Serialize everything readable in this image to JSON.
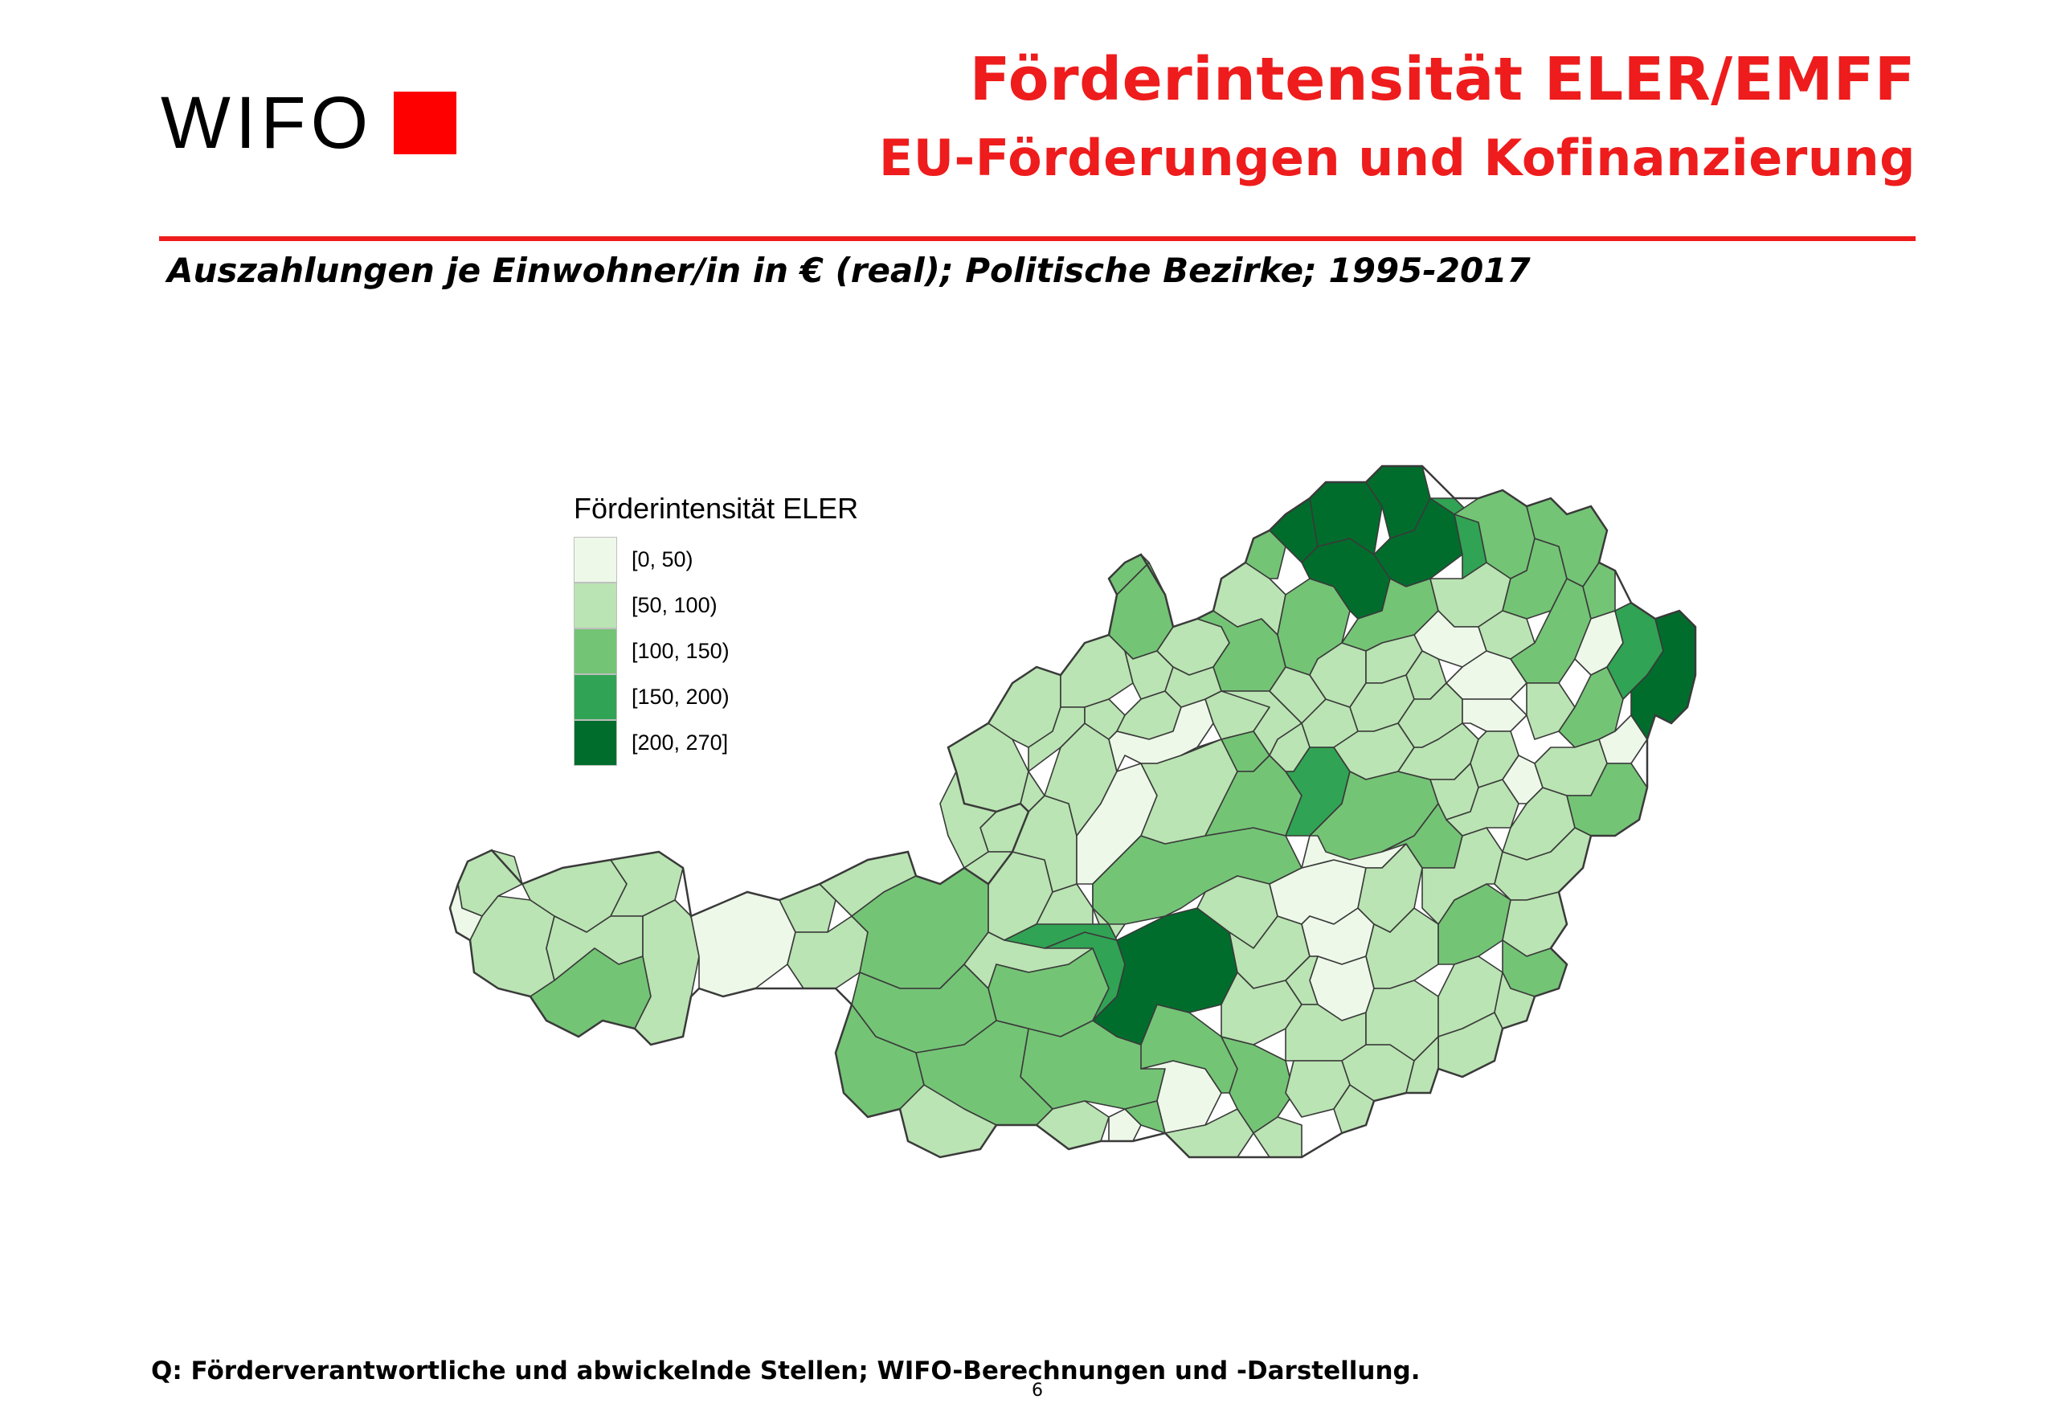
{
  "header": {
    "logo_text": "WIFO",
    "title": "Förderintensität ELER/EMFF",
    "subtitle": "EU-Förderungen und Kofinanzierung"
  },
  "map_subtitle": "Auszahlungen je Einwohner/in in € (real); Politische Bezirke; 1995-2017",
  "legend": {
    "title": "Förderintensität ELER",
    "classes": [
      {
        "label": "[0, 50)",
        "color": "#edf8e9"
      },
      {
        "label": "[50, 100)",
        "color": "#bae4b3"
      },
      {
        "label": "[100, 150)",
        "color": "#74c476"
      },
      {
        "label": "[150, 200)",
        "color": "#31a354"
      },
      {
        "label": "[200, 270]",
        "color": "#006d2c"
      }
    ]
  },
  "colors": {
    "accent": "#ee1c1c",
    "district_border": "#3a3a3a"
  },
  "footer": {
    "source": "Q: Förderverantwortliche und abwickelnde Stellen; WIFO-Berechnungen und -Darstellung.",
    "page_number": "6"
  }
}
